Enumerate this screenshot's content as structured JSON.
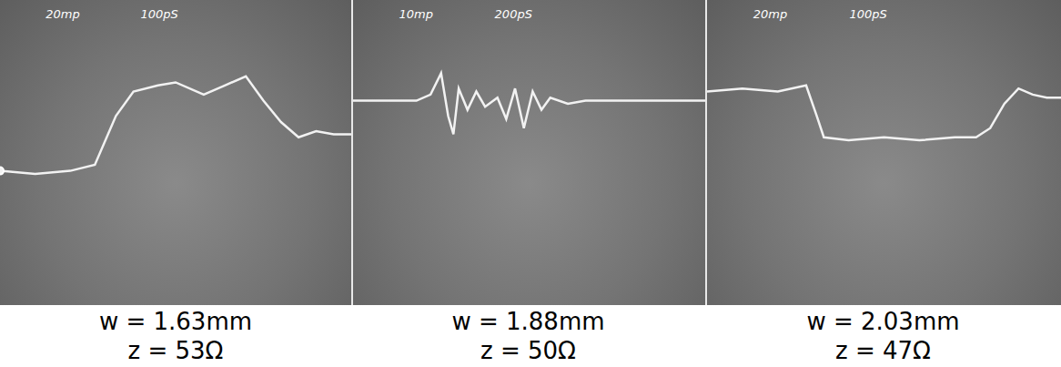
{
  "chart_data": [
    {
      "type": "line",
      "annotations": [
        "20mp",
        "100pS"
      ],
      "captions": [
        "w = 1.63mm",
        "z = 53Ω"
      ],
      "x": [
        0,
        10,
        20,
        27,
        33,
        38,
        45,
        50,
        58,
        64,
        70,
        75,
        80,
        85,
        90,
        95,
        100
      ],
      "values": [
        44,
        43,
        44,
        46,
        62,
        70,
        72,
        73,
        69,
        72,
        75,
        67,
        60,
        55,
        57,
        56,
        56
      ],
      "xlim": [
        0,
        100
      ],
      "ylim": [
        0,
        100
      ],
      "color": "#f2f2f2",
      "grid": false,
      "tick_labels": false
    },
    {
      "type": "line",
      "annotations": [
        "10mp",
        "200pS"
      ],
      "captions": [
        "w = 1.88mm",
        "z = 50Ω"
      ],
      "x": [
        0,
        10,
        18,
        22,
        25,
        27,
        28.5,
        30,
        32.5,
        35,
        37.5,
        41,
        43.5,
        46,
        48.5,
        51,
        53.5,
        56,
        61,
        66,
        75,
        100
      ],
      "values": [
        67,
        67,
        67,
        69,
        76,
        62,
        56,
        71,
        64,
        70,
        65,
        68,
        61,
        71,
        58,
        70,
        64,
        68,
        66,
        67,
        67,
        67
      ],
      "xlim": [
        0,
        100
      ],
      "ylim": [
        0,
        100
      ],
      "color": "#f2f2f2",
      "grid": false,
      "tick_labels": false
    },
    {
      "type": "line",
      "annotations": [
        "20mp",
        "100pS"
      ],
      "captions": [
        "w = 2.03mm",
        "z = 47Ω"
      ],
      "x": [
        0,
        10,
        20,
        28,
        31,
        33,
        40,
        50,
        60,
        70,
        76,
        80,
        84,
        88,
        92,
        96,
        100
      ],
      "values": [
        70,
        71,
        70,
        72,
        62,
        55,
        54,
        55,
        54,
        55,
        55,
        58,
        66,
        71,
        69,
        68,
        68
      ],
      "xlim": [
        0,
        100
      ],
      "ylim": [
        0,
        100
      ],
      "color": "#f2f2f2",
      "grid": false,
      "tick_labels": false
    }
  ]
}
